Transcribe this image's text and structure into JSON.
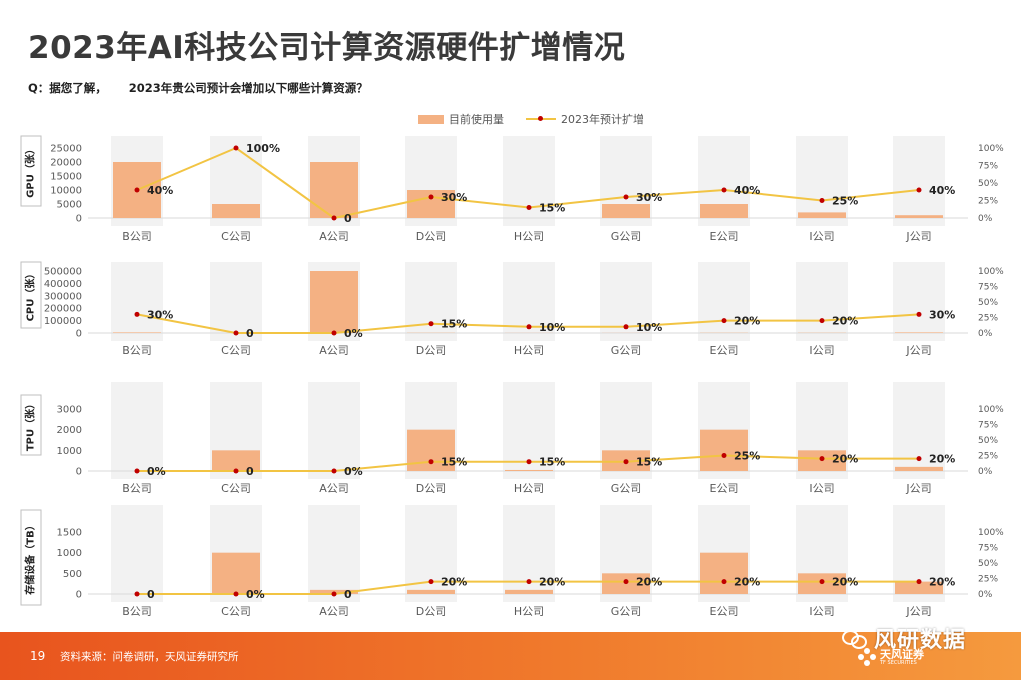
{
  "page": {
    "title": "2023年AI科技公司计算资源硬件扩增情况",
    "question_prefix": "Q：据您了解，",
    "question_text": "2023年贵公司预计会增加以下哪些计算资源？",
    "page_number": "19",
    "source": "资料来源：问卷调研，天风证券研究所",
    "watermark": "风研数据",
    "logo_text": "天风证券",
    "logo_sub": "TF SECURITIES"
  },
  "legend": {
    "bar_label": "目前使用量",
    "line_label": "2023年预计扩增"
  },
  "colors": {
    "bar": "#f4b183",
    "line": "#f2c443",
    "marker": "#c00000",
    "band": "#f2f2f2",
    "footer": "#ec6a26"
  },
  "chart_data": [
    {
      "type": "bar+line",
      "ylabel": "GPU（张）",
      "categories": [
        "B公司",
        "C公司",
        "A公司",
        "D公司",
        "H公司",
        "G公司",
        "E公司",
        "I公司",
        "J公司"
      ],
      "bar_values": [
        20000,
        5000,
        20000,
        10000,
        0,
        5000,
        5000,
        2000,
        1000
      ],
      "line_values": [
        40,
        100,
        0,
        30,
        15,
        30,
        40,
        25,
        40
      ],
      "line_labels": [
        "40%",
        "100%",
        "0",
        "30%",
        "15%",
        "30%",
        "40%",
        "25%",
        "40%"
      ],
      "left_ticks": [
        "25000",
        "20000",
        "15000",
        "10000",
        "5000",
        "0"
      ],
      "right_ticks": [
        "100%",
        "75%",
        "50%",
        "25%",
        "0%"
      ],
      "ylim": [
        0,
        25000
      ],
      "y2lim": [
        0,
        100
      ]
    },
    {
      "type": "bar+line",
      "ylabel": "CPU（张）",
      "categories": [
        "B公司",
        "C公司",
        "A公司",
        "D公司",
        "H公司",
        "G公司",
        "E公司",
        "I公司",
        "J公司"
      ],
      "bar_values": [
        5000,
        0,
        500000,
        2000,
        1000,
        1000,
        2000,
        2000,
        5000
      ],
      "line_values": [
        30,
        0,
        0,
        15,
        10,
        10,
        20,
        20,
        30
      ],
      "line_labels": [
        "30%",
        "0",
        "0%",
        "15%",
        "10%",
        "10%",
        "20%",
        "20%",
        "30%"
      ],
      "left_ticks": [
        "500000",
        "400000",
        "300000",
        "200000",
        "100000",
        "0"
      ],
      "right_ticks": [
        "100%",
        "75%",
        "50%",
        "25%",
        "0%"
      ],
      "ylim": [
        0,
        500000
      ],
      "y2lim": [
        0,
        100
      ]
    },
    {
      "type": "bar+line",
      "ylabel": "TPU（张）",
      "categories": [
        "B公司",
        "C公司",
        "A公司",
        "D公司",
        "H公司",
        "G公司",
        "E公司",
        "I公司",
        "J公司"
      ],
      "bar_values": [
        0,
        1000,
        0,
        2000,
        50,
        1000,
        2000,
        1000,
        200
      ],
      "line_values": [
        0,
        0,
        0,
        15,
        15,
        15,
        25,
        20,
        20
      ],
      "line_labels": [
        "0%",
        "0",
        "0%",
        "15%",
        "15%",
        "15%",
        "25%",
        "20%",
        "20%"
      ],
      "left_ticks": [
        "3000",
        "2000",
        "1000",
        "0"
      ],
      "right_ticks": [
        "100%",
        "75%",
        "50%",
        "25%",
        "0%"
      ],
      "ylim": [
        0,
        3000
      ],
      "y2lim": [
        0,
        100
      ]
    },
    {
      "type": "bar+line",
      "ylabel": "存储设备（TB）",
      "categories": [
        "B公司",
        "C公司",
        "A公司",
        "D公司",
        "H公司",
        "G公司",
        "E公司",
        "I公司",
        "J公司"
      ],
      "bar_values": [
        0,
        1000,
        100,
        100,
        100,
        500,
        1000,
        500,
        300
      ],
      "line_values": [
        0,
        0,
        0,
        20,
        20,
        20,
        20,
        20,
        20
      ],
      "line_labels": [
        "0",
        "0%",
        "0",
        "20%",
        "20%",
        "20%",
        "20%",
        "20%",
        "20%"
      ],
      "left_ticks": [
        "1500",
        "1000",
        "500",
        "0"
      ],
      "right_ticks": [
        "100%",
        "75%",
        "50%",
        "25%",
        "0%"
      ],
      "ylim": [
        0,
        1500
      ],
      "y2lim": [
        0,
        100
      ]
    }
  ]
}
